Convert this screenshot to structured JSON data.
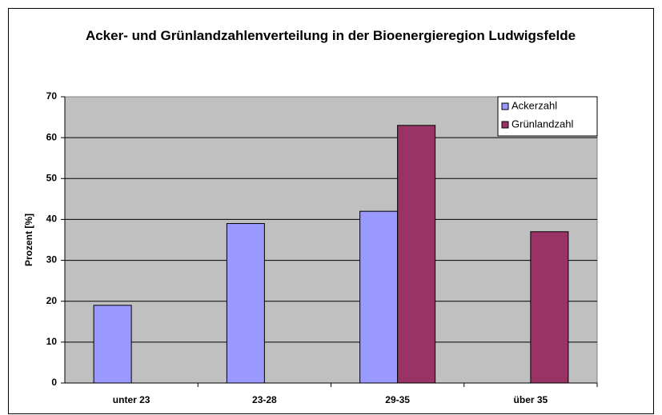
{
  "chart_data": {
    "type": "bar",
    "title": "Acker- und Grünlandzahlenverteilung in der Bioenergieregion Ludwigsfelde",
    "y_label": "Prozent [%]",
    "categories": [
      "unter 23",
      "23-28",
      "29-35",
      "über 35"
    ],
    "series": [
      {
        "name": "Ackerzahl",
        "color": "#9999ff",
        "values": [
          19,
          39,
          42,
          null
        ]
      },
      {
        "name": "Grünlandzahl",
        "color": "#993366",
        "values": [
          null,
          null,
          63,
          37
        ]
      }
    ],
    "ylim": [
      0,
      70
    ],
    "yticks": [
      0,
      10,
      20,
      30,
      40,
      50,
      60,
      70
    ],
    "grid": true,
    "legend": "top-right"
  }
}
